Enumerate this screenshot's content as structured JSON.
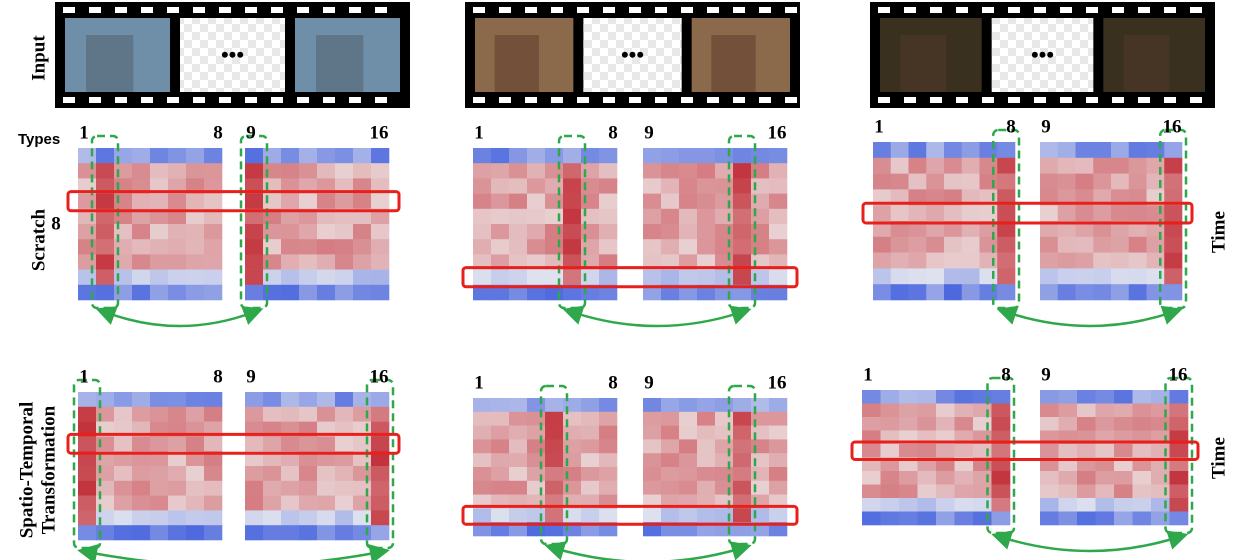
{
  "input_label": "Input",
  "types_label": "Types",
  "row_marker": "8",
  "row_labels": {
    "scratch": "Scratch",
    "st_line1": "Spatio-Temporal",
    "st_line2": "Transformation"
  },
  "time_labels": [
    "Time",
    "Time"
  ],
  "ellipsis": [
    "•••",
    "•••",
    "•••"
  ],
  "panels": [
    {
      "labels": [
        "1",
        "8",
        "9",
        "16"
      ]
    },
    {
      "labels": [
        "1",
        "8",
        "9",
        "16"
      ]
    },
    {
      "labels": [
        "1",
        "8",
        "9",
        "16"
      ]
    },
    {
      "labels": [
        "1",
        "8",
        "9",
        "16"
      ]
    },
    {
      "labels": [
        "1",
        "8",
        "9",
        "16"
      ]
    },
    {
      "labels": [
        "1",
        "8",
        "9",
        "16"
      ]
    }
  ]
}
